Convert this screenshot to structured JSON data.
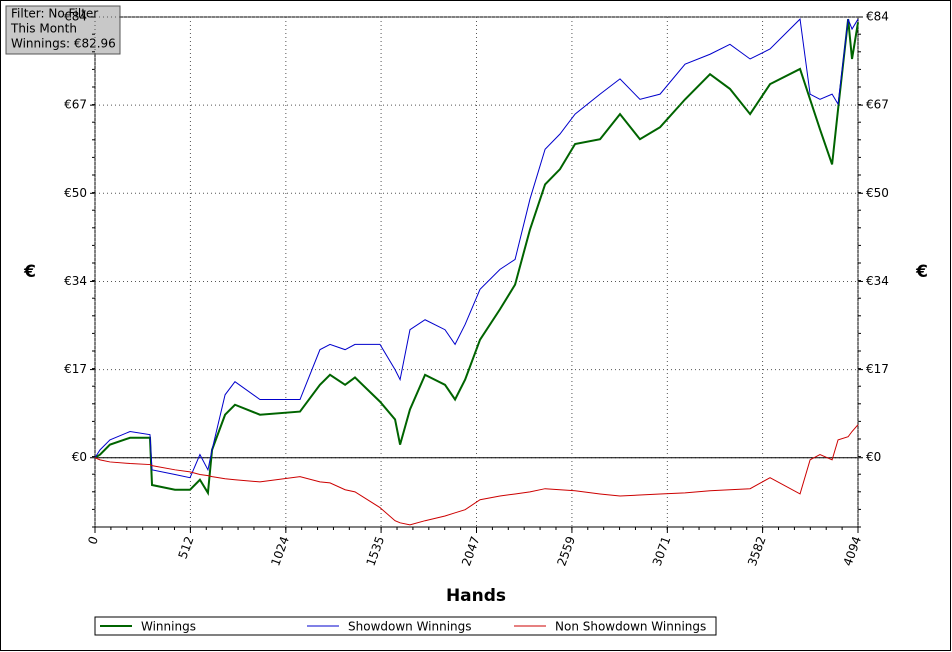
{
  "chart_data": {
    "type": "line",
    "info": [
      "Filter: No Filter",
      "This Month",
      "Winnings: €82.96"
    ],
    "xlabel": "Hands",
    "ylabel": "€",
    "y2label": "€",
    "x": [
      0,
      27,
      80,
      188,
      295,
      306,
      429,
      510,
      563,
      606,
      628,
      698,
      751,
      885,
      1100,
      1207,
      1261,
      1342,
      1395,
      1529,
      1610,
      1637,
      1690,
      1771,
      1878,
      1932,
      1986,
      2066,
      2173,
      2254,
      2334,
      2415,
      2495,
      2576,
      2710,
      2817,
      2924,
      3032,
      3166,
      3300,
      3407,
      3515,
      3622,
      3783,
      3837,
      3890,
      3955,
      3987,
      4041,
      4062,
      4094
    ],
    "series": [
      {
        "name": "Winnings",
        "color": "#006400",
        "width": 2,
        "values": [
          0,
          0.6,
          2.5,
          3.8,
          3.8,
          -5.2,
          -6.1,
          -6.1,
          -4.2,
          -6.7,
          1.5,
          8.2,
          10.1,
          8.2,
          8.8,
          13.9,
          15.8,
          13.9,
          15.3,
          10.7,
          7.3,
          2.5,
          9.2,
          15.8,
          13.9,
          11.1,
          14.9,
          22.5,
          28.3,
          33.0,
          43.5,
          52.1,
          55.0,
          59.8,
          60.7,
          65.5,
          60.7,
          63.0,
          68.3,
          73.1,
          70.3,
          65.5,
          71.2,
          74.1,
          68.3,
          62.6,
          55.9,
          66.4,
          83.6,
          76.0,
          82.96
        ]
      },
      {
        "name": "Showdown Winnings",
        "color": "#0000cc",
        "width": 1,
        "values": [
          0,
          1.5,
          3.4,
          5.0,
          4.4,
          -2.3,
          -3.2,
          -3.8,
          0.6,
          -2.3,
          1.5,
          12.0,
          14.5,
          11.1,
          11.1,
          20.6,
          21.6,
          20.6,
          21.6,
          21.6,
          16.8,
          14.9,
          24.4,
          26.3,
          24.4,
          21.6,
          25.4,
          32.1,
          35.9,
          37.8,
          49.3,
          58.8,
          61.7,
          65.5,
          69.3,
          72.2,
          68.3,
          69.3,
          75.0,
          76.9,
          78.8,
          76.0,
          77.9,
          83.6,
          69.3,
          68.3,
          69.3,
          67.4,
          83.6,
          81.7,
          83.6
        ]
      },
      {
        "name": "Non Showdown Winnings",
        "color": "#cc0000",
        "width": 1,
        "values": [
          0,
          -0.4,
          -0.8,
          -1.1,
          -1.3,
          -1.5,
          -2.3,
          -2.7,
          -3.2,
          -3.4,
          -3.6,
          -4.0,
          -4.2,
          -4.6,
          -3.6,
          -4.6,
          -4.8,
          -6.1,
          -6.5,
          -9.5,
          -12.0,
          -12.4,
          -12.8,
          -12.0,
          -11.1,
          -10.5,
          -9.9,
          -8.0,
          -7.3,
          -6.9,
          -6.5,
          -5.9,
          -6.1,
          -6.3,
          -6.9,
          -7.3,
          -7.1,
          -6.9,
          -6.7,
          -6.3,
          -6.1,
          -5.9,
          -3.8,
          -6.9,
          -0.4,
          0.6,
          -0.4,
          3.4,
          4.0,
          5.0,
          6.3
        ]
      }
    ],
    "xlim": [
      0,
      4094
    ],
    "xticks": [
      0,
      512,
      1024,
      1535,
      2047,
      2559,
      3071,
      3582,
      4094
    ],
    "ylim": [
      -13.2,
      84
    ],
    "yticks": [
      {
        "value": 0,
        "label": "€0"
      },
      {
        "value": 16.8,
        "label": "€17"
      },
      {
        "value": 33.6,
        "label": "€34"
      },
      {
        "value": 50.4,
        "label": "€50"
      },
      {
        "value": 67.2,
        "label": "€67"
      },
      {
        "value": 84,
        "label": "€84"
      }
    ],
    "grid": true
  }
}
